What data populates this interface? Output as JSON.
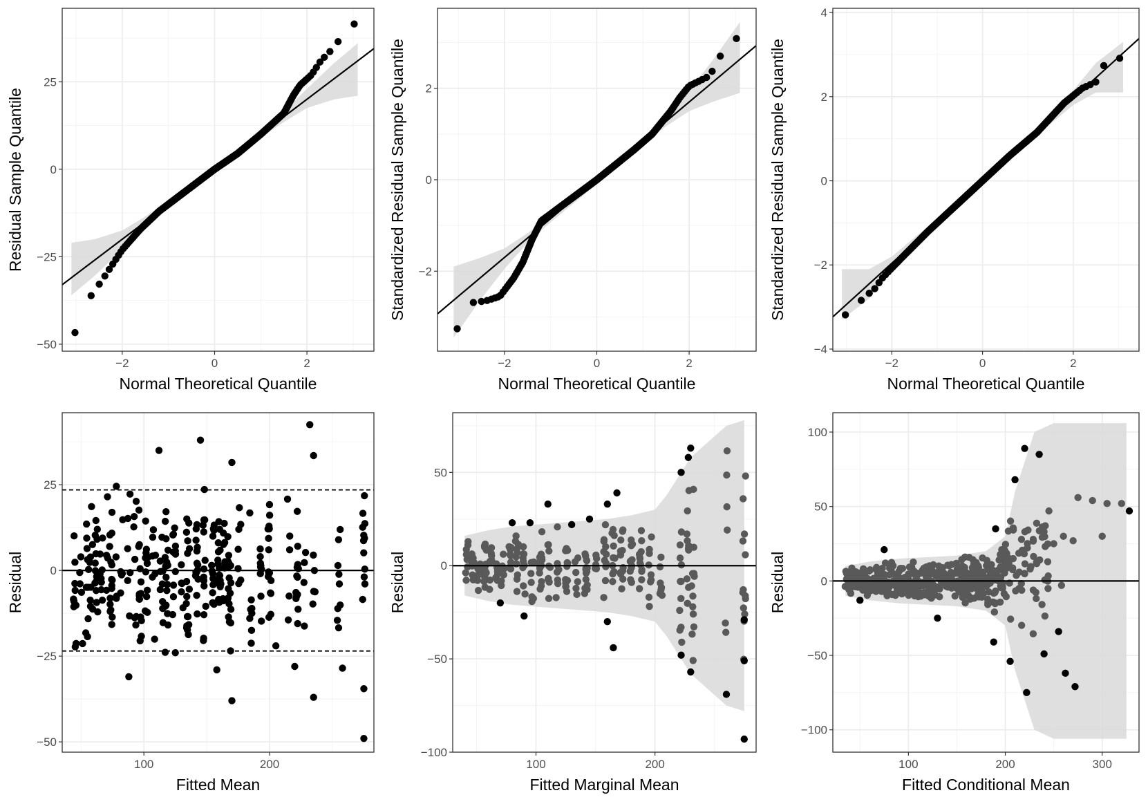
{
  "chart_data": [
    {
      "id": "qq-raw",
      "type": "scatter",
      "xlabel": "Normal Theoretical Quantile",
      "ylabel": "Residual Sample Quantile",
      "xlim": [
        -3.3,
        3.45
      ],
      "ylim": [
        -52,
        46
      ],
      "xticks": [
        -2,
        0,
        2
      ],
      "xtick_labels": [
        "−2",
        "0",
        "2"
      ],
      "yticks": [
        -50,
        -25,
        0,
        25
      ],
      "ytick_labels": [
        "−50",
        "−25",
        "0",
        "25"
      ],
      "reference_line": {
        "slope": 10,
        "intercept": 0
      },
      "qq_distribution": "normal",
      "n_points": 400,
      "qq_knots": [
        [
          -3.1,
          -49.5
        ],
        [
          -2.8,
          -38.5
        ],
        [
          -2.4,
          -31
        ],
        [
          -2.0,
          -23
        ],
        [
          -1.6,
          -17
        ],
        [
          -1.2,
          -12
        ],
        [
          -0.8,
          -8
        ],
        [
          -0.4,
          -4
        ],
        [
          0,
          0
        ],
        [
          0.5,
          4.5
        ],
        [
          1.0,
          10
        ],
        [
          1.5,
          16
        ],
        [
          1.7,
          21
        ],
        [
          1.85,
          24
        ],
        [
          2.1,
          27
        ],
        [
          2.3,
          31
        ],
        [
          2.6,
          35
        ],
        [
          2.75,
          38
        ],
        [
          3.1,
          42.5
        ]
      ],
      "confidence_band": [
        [
          -3.1,
          -36,
          -21
        ],
        [
          -2.6,
          -30.5,
          -20
        ],
        [
          -2.0,
          -23,
          -17.5
        ],
        [
          -1.5,
          -16.5,
          -13.5
        ],
        [
          -1.0,
          -11,
          -9
        ],
        [
          0,
          -1,
          1
        ],
        [
          1.0,
          9,
          11
        ],
        [
          1.5,
          13.5,
          16.5
        ],
        [
          2.0,
          17.5,
          23
        ],
        [
          2.6,
          20,
          30.5
        ],
        [
          3.1,
          21,
          36
        ]
      ],
      "marker_color": "#000000"
    },
    {
      "id": "qq-standardized-marginal",
      "type": "scatter",
      "xlabel": "Normal Theoretical Quantile",
      "ylabel": "Standardized Residual Sample Quantile",
      "xlim": [
        -3.45,
        3.45
      ],
      "ylim": [
        -3.75,
        3.75
      ],
      "xticks": [
        -2,
        0,
        2
      ],
      "xtick_labels": [
        "−2",
        "0",
        "2"
      ],
      "yticks": [
        -2,
        0,
        2
      ],
      "ytick_labels": [
        "−2",
        "0",
        "2"
      ],
      "reference_line": {
        "slope": 0.85,
        "intercept": 0
      },
      "qq_distribution": "normal",
      "n_points": 400,
      "qq_knots": [
        [
          -3.1,
          -3.45
        ],
        [
          -2.8,
          -2.7
        ],
        [
          -2.4,
          -2.65
        ],
        [
          -2.1,
          -2.55
        ],
        [
          -1.8,
          -2.15
        ],
        [
          -1.6,
          -1.8
        ],
        [
          -1.4,
          -1.3
        ],
        [
          -1.2,
          -0.9
        ],
        [
          -0.8,
          -0.6
        ],
        [
          0,
          0
        ],
        [
          0.8,
          0.65
        ],
        [
          1.2,
          1.0
        ],
        [
          1.6,
          1.5
        ],
        [
          1.8,
          1.8
        ],
        [
          2.0,
          2.05
        ],
        [
          2.2,
          2.15
        ],
        [
          2.4,
          2.25
        ],
        [
          2.6,
          2.5
        ],
        [
          2.8,
          3.05
        ],
        [
          3.1,
          3.1
        ]
      ],
      "confidence_band": [
        [
          -3.1,
          -3.45,
          -1.9
        ],
        [
          -2.5,
          -2.6,
          -1.7
        ],
        [
          -2.0,
          -1.95,
          -1.5
        ],
        [
          -1.5,
          -1.38,
          -1.17
        ],
        [
          -1.0,
          -0.93,
          -0.77
        ],
        [
          0,
          -0.1,
          0.1
        ],
        [
          1.0,
          0.77,
          0.93
        ],
        [
          1.5,
          1.17,
          1.38
        ],
        [
          2.0,
          1.5,
          1.95
        ],
        [
          2.5,
          1.7,
          2.6
        ],
        [
          3.1,
          1.9,
          3.45
        ]
      ],
      "marker_color": "#000000"
    },
    {
      "id": "qq-standardized-conditional",
      "type": "scatter",
      "xlabel": "Normal Theoretical Quantile",
      "ylabel": "Standardized Residual Sample Quantile",
      "xlim": [
        -3.3,
        3.45
      ],
      "ylim": [
        -4.05,
        4.1
      ],
      "xticks": [
        -2,
        0,
        2
      ],
      "xtick_labels": [
        "−2",
        "0",
        "2"
      ],
      "yticks": [
        -4,
        -2,
        0,
        2,
        4
      ],
      "ytick_labels": [
        "−4",
        "−2",
        "0",
        "2",
        "4"
      ],
      "reference_line": {
        "slope": 0.98,
        "intercept": 0
      },
      "qq_distribution": "normal",
      "n_points": 400,
      "qq_knots": [
        [
          -3.1,
          -3.25
        ],
        [
          -2.8,
          -3.0
        ],
        [
          -2.6,
          -2.75
        ],
        [
          -2.4,
          -2.6
        ],
        [
          -2.2,
          -2.3
        ],
        [
          -1.8,
          -1.85
        ],
        [
          -1.2,
          -1.2
        ],
        [
          -0.6,
          -0.6
        ],
        [
          0,
          0
        ],
        [
          0.6,
          0.6
        ],
        [
          1.2,
          1.15
        ],
        [
          1.8,
          1.85
        ],
        [
          2.2,
          2.2
        ],
        [
          2.5,
          2.35
        ],
        [
          2.6,
          2.7
        ],
        [
          2.8,
          2.8
        ],
        [
          3.1,
          2.95
        ]
      ],
      "confidence_band": [
        [
          -3.1,
          -3.3,
          -2.1
        ],
        [
          -2.5,
          -2.8,
          -2.1
        ],
        [
          -2.0,
          -2.15,
          -1.8
        ],
        [
          -1.0,
          -1.05,
          -0.9
        ],
        [
          0,
          -0.08,
          0.08
        ],
        [
          1.0,
          0.9,
          1.05
        ],
        [
          2.0,
          1.8,
          2.15
        ],
        [
          2.5,
          2.1,
          2.8
        ],
        [
          3.1,
          2.1,
          3.3
        ]
      ],
      "marker_color": "#000000"
    },
    {
      "id": "residual-vs-fitted",
      "type": "scatter",
      "xlabel": "Fitted Mean",
      "ylabel": "Residual",
      "xlim": [
        35,
        283
      ],
      "ylim": [
        -53,
        46
      ],
      "xticks": [
        100,
        200
      ],
      "xtick_labels": [
        "100",
        "200"
      ],
      "yticks": [
        -50,
        -25,
        0,
        25
      ],
      "ytick_labels": [
        "−50",
        "−25",
        "0",
        "25"
      ],
      "hline": 0,
      "dashed_hlines": [
        23.5,
        -23.5
      ],
      "fitted_x_groups": [
        45,
        50,
        55,
        58,
        62,
        66,
        70,
        74,
        78,
        82,
        88,
        93,
        97,
        102,
        108,
        114,
        118,
        124,
        130,
        135,
        142,
        148,
        155,
        160,
        164,
        168,
        176,
        185,
        193,
        200,
        215,
        222,
        228,
        235,
        255,
        275
      ],
      "residual_spread": 11,
      "outliers": [
        [
          232,
          42.5
        ],
        [
          145,
          38
        ],
        [
          170,
          31.5
        ],
        [
          112,
          35
        ],
        [
          235,
          33.5
        ],
        [
          88,
          -31
        ],
        [
          125,
          -24
        ],
        [
          158,
          -29
        ],
        [
          170,
          -38
        ],
        [
          235,
          -37
        ],
        [
          258,
          -28.5
        ],
        [
          275,
          -34.5
        ],
        [
          275,
          -49
        ],
        [
          205,
          -22
        ],
        [
          220,
          -28
        ]
      ],
      "marker_color": "#000000"
    },
    {
      "id": "residual-vs-marginal",
      "type": "scatter",
      "xlabel": "Fitted Marginal Mean",
      "ylabel": "Residual",
      "xlim": [
        30,
        285
      ],
      "ylim": [
        -100,
        82
      ],
      "xticks": [
        100,
        200
      ],
      "xtick_labels": [
        "100",
        "200"
      ],
      "yticks": [
        -100,
        -50,
        0,
        50
      ],
      "ytick_labels": [
        "−100",
        "−50",
        "0",
        "50"
      ],
      "hline": 0,
      "envelope": [
        [
          40,
          16
        ],
        [
          60,
          19
        ],
        [
          80,
          21
        ],
        [
          100,
          22
        ],
        [
          120,
          23
        ],
        [
          140,
          24
        ],
        [
          160,
          25
        ],
        [
          180,
          27
        ],
        [
          200,
          30
        ],
        [
          210,
          38
        ],
        [
          230,
          58
        ],
        [
          260,
          75
        ],
        [
          275,
          78
        ]
      ],
      "fitted_x_groups": [
        42,
        47,
        52,
        57,
        62,
        67,
        72,
        78,
        84,
        90,
        97,
        104,
        111,
        118,
        126,
        134,
        142,
        150,
        158,
        165,
        172,
        180,
        188,
        196,
        205,
        222,
        228,
        232,
        260,
        275
      ],
      "outliers_outside": [
        [
          230,
          63
        ],
        [
          228,
          58
        ],
        [
          222,
          50
        ],
        [
          168,
          39
        ],
        [
          160,
          33
        ],
        [
          110,
          33
        ],
        [
          95,
          23
        ],
        [
          80,
          23
        ],
        [
          130,
          22
        ],
        [
          145,
          25
        ],
        [
          70,
          -20
        ],
        [
          90,
          -27
        ],
        [
          165,
          -44
        ],
        [
          160,
          -30
        ],
        [
          222,
          -48
        ],
        [
          230,
          -57
        ],
        [
          260,
          -69
        ],
        [
          275,
          -93
        ],
        [
          275,
          -51
        ],
        [
          275,
          -29
        ]
      ],
      "marker_color_inside": "#595959",
      "marker_color_outside": "#000000"
    },
    {
      "id": "residual-vs-conditional",
      "type": "scatter",
      "xlabel": "Fitted Conditional Mean",
      "ylabel": "Residual",
      "xlim": [
        22,
        338
      ],
      "ylim": [
        -115,
        113
      ],
      "xticks": [
        100,
        200,
        300
      ],
      "xtick_labels": [
        "100",
        "200",
        "300"
      ],
      "yticks": [
        -100,
        -50,
        0,
        50,
        100
      ],
      "ytick_labels": [
        "−100",
        "−50",
        "0",
        "50",
        "100"
      ],
      "hline": 0,
      "envelope": [
        [
          35,
          10
        ],
        [
          60,
          13
        ],
        [
          90,
          15
        ],
        [
          120,
          16
        ],
        [
          150,
          17
        ],
        [
          180,
          20
        ],
        [
          200,
          30
        ],
        [
          210,
          60
        ],
        [
          230,
          100
        ],
        [
          250,
          106
        ],
        [
          325,
          106
        ]
      ],
      "fitted_x_range": [
        35,
        330
      ],
      "outliers_outside": [
        [
          220,
          89
        ],
        [
          235,
          85
        ],
        [
          210,
          68
        ],
        [
          190,
          35
        ],
        [
          188,
          -41
        ],
        [
          205,
          -54
        ],
        [
          222,
          -75
        ],
        [
          240,
          -49
        ],
        [
          255,
          -34
        ],
        [
          262,
          -62
        ],
        [
          272,
          -71
        ],
        [
          328,
          47
        ],
        [
          75,
          21
        ],
        [
          130,
          -25
        ],
        [
          50,
          -13
        ]
      ],
      "inside_highlights": [
        [
          260,
          30
        ],
        [
          275,
          56
        ],
        [
          290,
          54
        ],
        [
          305,
          52
        ],
        [
          245,
          47
        ],
        [
          240,
          33
        ],
        [
          300,
          30
        ],
        [
          270,
          27
        ],
        [
          250,
          25
        ],
        [
          258,
          -3
        ],
        [
          320,
          52
        ]
      ],
      "marker_color_inside": "#595959",
      "marker_color_outside": "#000000"
    }
  ]
}
